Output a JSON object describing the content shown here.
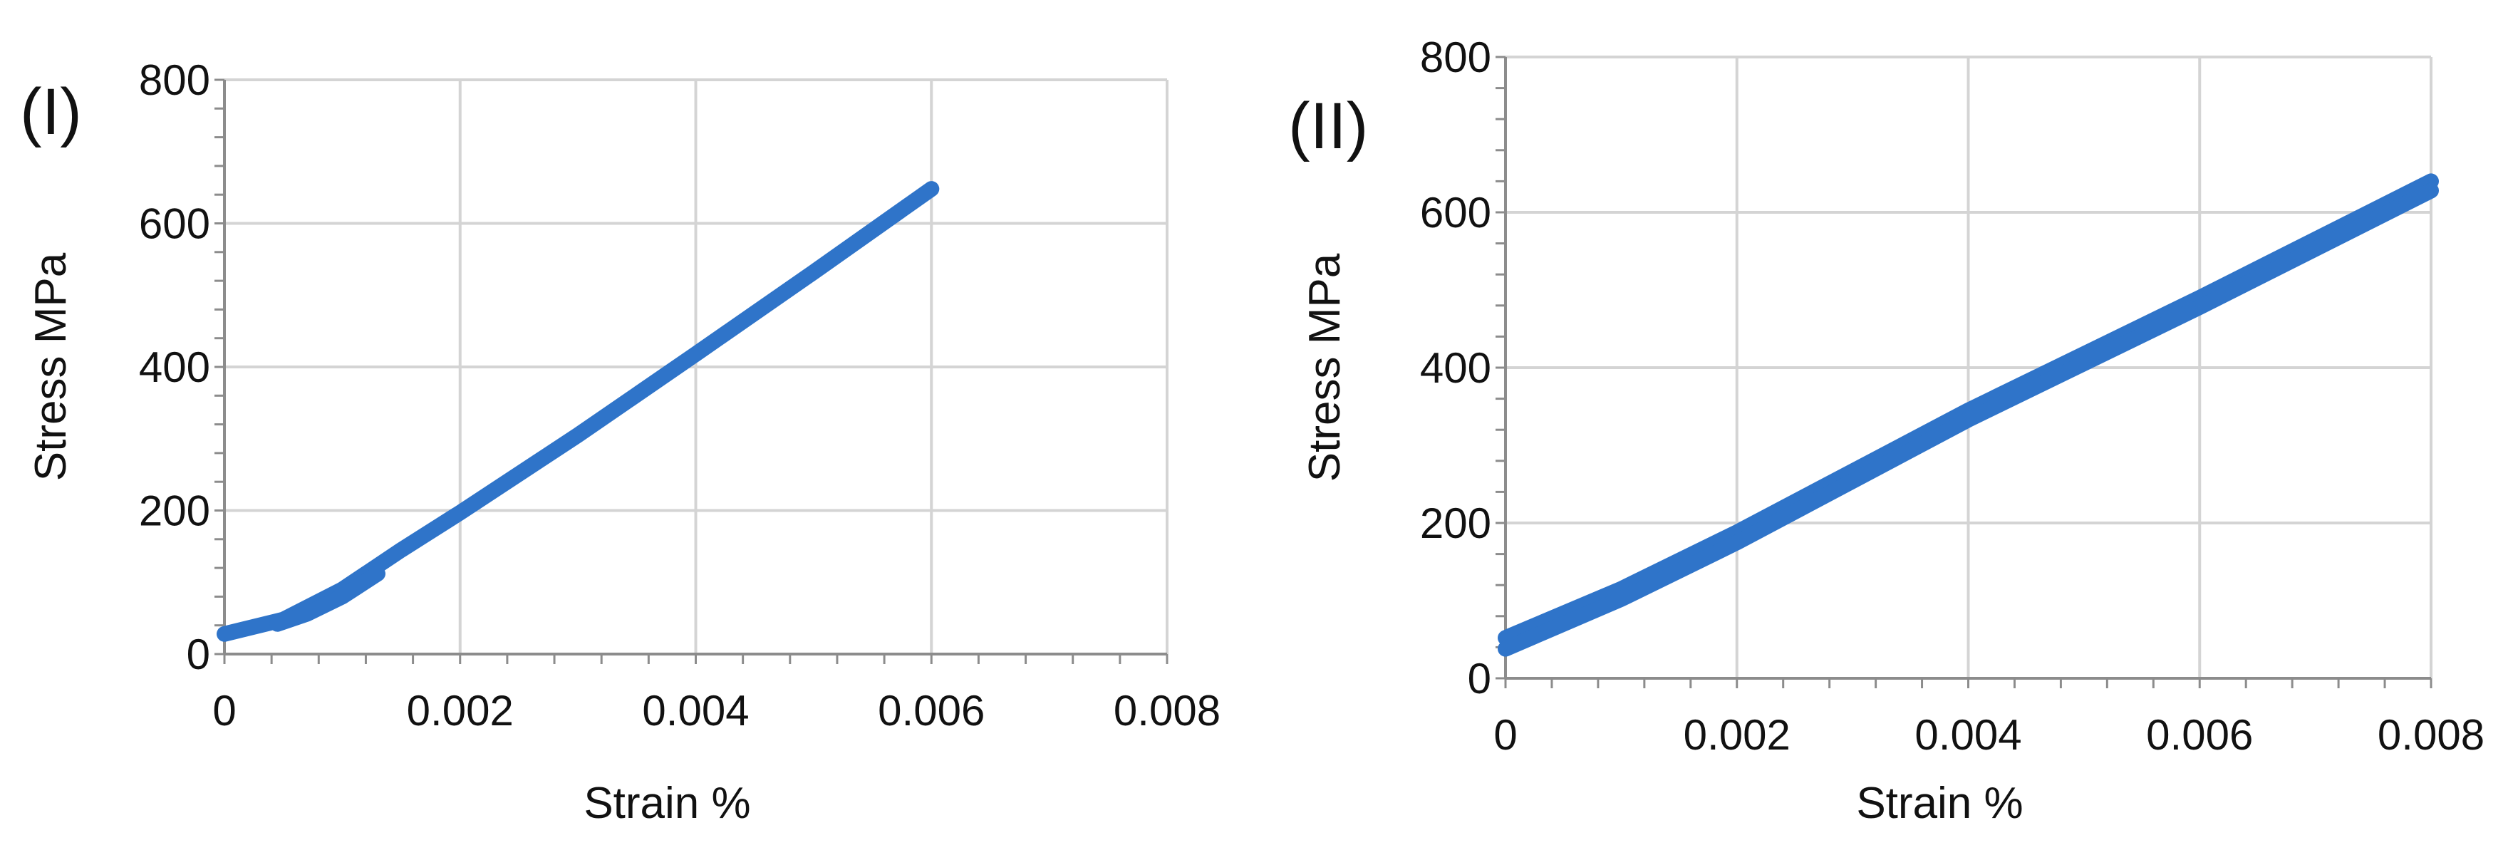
{
  "colors": {
    "series": "#2f74c9",
    "grid": "#d4d4d4",
    "axis": "#8c8c8c",
    "text": "#111111"
  },
  "chart_data": [
    {
      "type": "line",
      "panel_label": "(I)",
      "xlabel": "Strain %",
      "ylabel": "Stress MPa",
      "xlim": [
        0,
        0.008
      ],
      "ylim": [
        0,
        800
      ],
      "x_ticks": [
        "0",
        "0.002",
        "0.004",
        "0.006",
        "0.008"
      ],
      "y_ticks": [
        "0",
        "200",
        "400",
        "600",
        "800"
      ],
      "grid": true,
      "legend": "none",
      "series": [
        {
          "points": [
            [
              0,
              28
            ],
            [
              0.0005,
              48
            ],
            [
              0.001,
              90
            ],
            [
              0.0015,
              145
            ],
            [
              0.002,
              197
            ],
            [
              0.003,
              305
            ],
            [
              0.004,
              418
            ],
            [
              0.005,
              532
            ],
            [
              0.006,
              648
            ]
          ]
        },
        {
          "points": [
            [
              0.00045,
              42
            ],
            [
              0.0007,
              56
            ],
            [
              0.001,
              80
            ],
            [
              0.0013,
              112
            ]
          ]
        }
      ]
    },
    {
      "type": "line",
      "panel_label": "(II)",
      "xlabel": "Strain %",
      "ylabel": "Stress MPa",
      "xlim": [
        0,
        0.008
      ],
      "ylim": [
        0,
        800
      ],
      "x_ticks": [
        "0",
        "0.002",
        "0.004",
        "0.006",
        "0.008"
      ],
      "y_ticks": [
        "0",
        "200",
        "400",
        "600",
        "800"
      ],
      "grid": true,
      "legend": "none",
      "series": [
        {
          "points": [
            [
              0,
              52
            ],
            [
              0.001,
              115
            ],
            [
              0.002,
              188
            ],
            [
              0.004,
              345
            ],
            [
              0.006,
              490
            ],
            [
              0.008,
              640
            ]
          ]
        },
        {
          "points": [
            [
              0,
              38
            ],
            [
              0.001,
              102
            ],
            [
              0.002,
              175
            ],
            [
              0.004,
              333
            ],
            [
              0.006,
              478
            ],
            [
              0.008,
              628
            ]
          ]
        }
      ]
    }
  ]
}
